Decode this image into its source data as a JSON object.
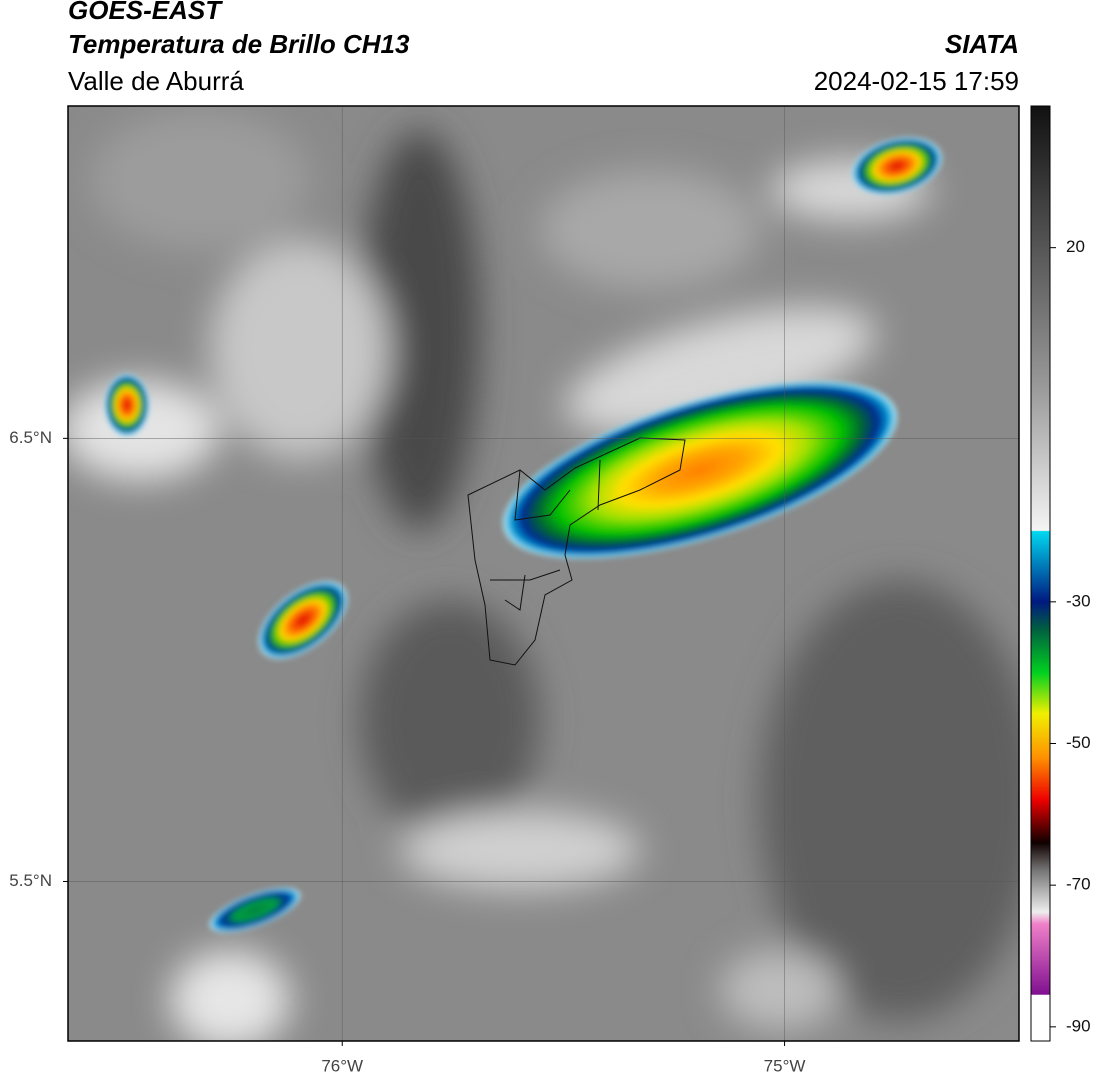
{
  "header": {
    "title": "GOES-EAST",
    "subtitle": "Temperatura de Brillo CH13",
    "region": "Valle de Aburrá",
    "source": "SIATA",
    "datetime": "2024-02-15 17:59"
  },
  "map": {
    "xlim": [
      -76.62,
      -74.47
    ],
    "ylim": [
      5.14,
      7.25
    ],
    "xticks": [
      {
        "value": -76,
        "label": "76°W"
      },
      {
        "value": -75,
        "label": "75°W"
      }
    ],
    "yticks": [
      {
        "value": 6.5,
        "label": "6.5°N"
      },
      {
        "value": 5.5,
        "label": "5.5°N"
      }
    ],
    "grid": true
  },
  "colorbar": {
    "clim": [
      -92,
      40
    ],
    "ticks": [
      20,
      -30,
      -50,
      -70,
      -90
    ]
  }
}
